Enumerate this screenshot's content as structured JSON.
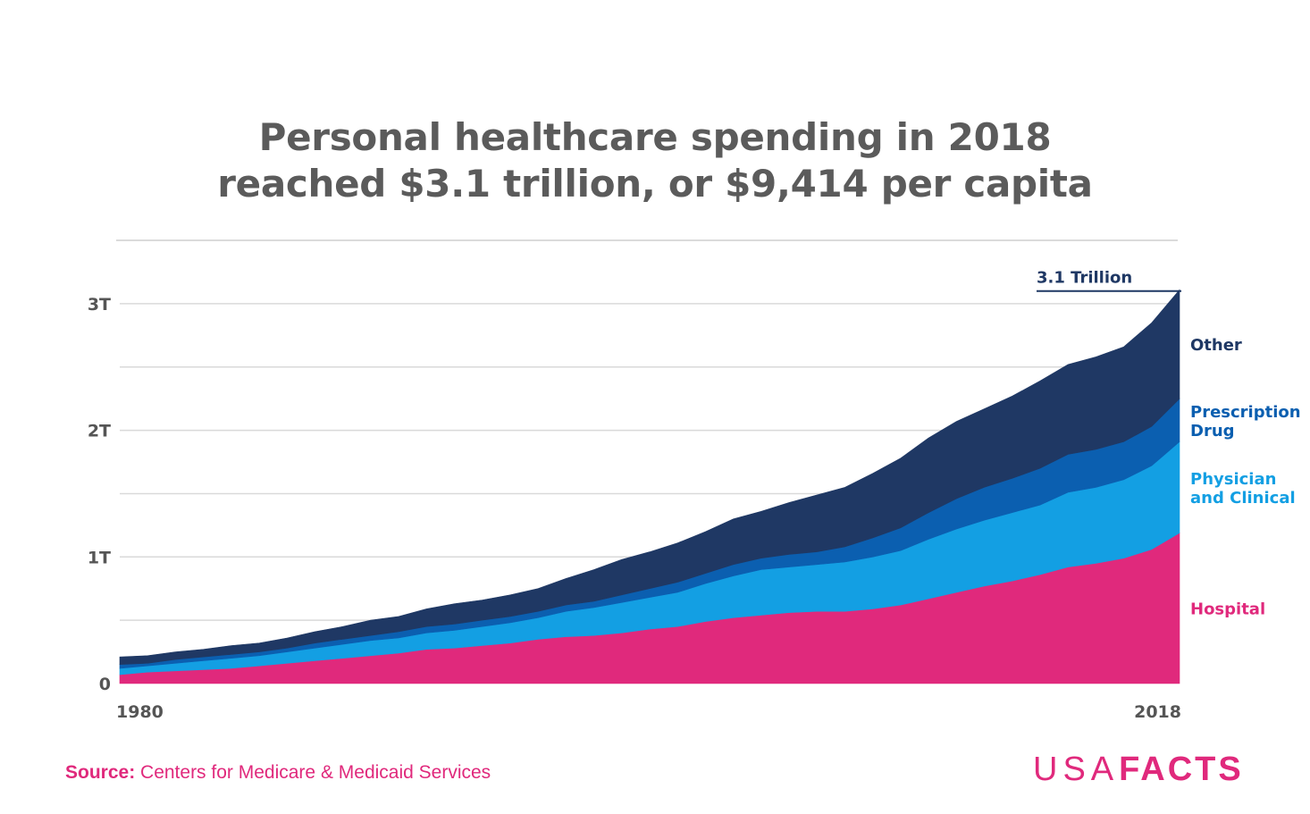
{
  "title_lines": [
    "Personal healthcare spending in 2018",
    "reached $3.1 trillion, or $9,414 per capita"
  ],
  "source": {
    "prefix": "Source:",
    "text": "Centers for Medicare & Medicaid Services"
  },
  "logo": {
    "left": "USA",
    "right": "FACTS"
  },
  "chart_data": {
    "type": "area",
    "stacked": true,
    "title": "Personal healthcare spending in 2018 reached $3.1 trillion, or $9,414 per capita",
    "x": [
      1980,
      1981,
      1982,
      1983,
      1984,
      1985,
      1986,
      1987,
      1988,
      1989,
      1990,
      1991,
      1992,
      1993,
      1994,
      1995,
      1996,
      1997,
      1998,
      1999,
      2000,
      2001,
      2002,
      2003,
      2004,
      2005,
      2006,
      2007,
      2008,
      2009,
      2010,
      2011,
      2012,
      2013,
      2014,
      2015,
      2016,
      2017,
      2018
    ],
    "x_tick_labels": [
      "1980",
      "2018"
    ],
    "y_ticks": [
      0,
      1,
      2,
      3
    ],
    "y_tick_labels": [
      "0",
      "1T",
      "2T",
      "3T"
    ],
    "ylim": [
      0,
      3.5
    ],
    "y_unit": "trillion dollars",
    "grid": true,
    "series": [
      {
        "name": "Hospital",
        "color": "#e0297c",
        "values": [
          0.07,
          0.09,
          0.1,
          0.11,
          0.12,
          0.14,
          0.16,
          0.18,
          0.2,
          0.22,
          0.24,
          0.27,
          0.28,
          0.3,
          0.32,
          0.35,
          0.37,
          0.38,
          0.4,
          0.43,
          0.45,
          0.49,
          0.52,
          0.54,
          0.56,
          0.57,
          0.57,
          0.59,
          0.62,
          0.67,
          0.72,
          0.77,
          0.81,
          0.86,
          0.92,
          0.95,
          0.99,
          1.06,
          1.19
        ]
      },
      {
        "name": "Physician and Clinical",
        "color": "#139fe3",
        "values": [
          0.05,
          0.05,
          0.06,
          0.07,
          0.08,
          0.08,
          0.09,
          0.1,
          0.11,
          0.12,
          0.12,
          0.13,
          0.14,
          0.15,
          0.16,
          0.17,
          0.2,
          0.22,
          0.24,
          0.25,
          0.27,
          0.3,
          0.33,
          0.36,
          0.36,
          0.37,
          0.39,
          0.41,
          0.43,
          0.47,
          0.5,
          0.52,
          0.54,
          0.55,
          0.59,
          0.6,
          0.62,
          0.66,
          0.72
        ]
      },
      {
        "name": "Prescription Drug",
        "color": "#0b5fb0",
        "values": [
          0.03,
          0.02,
          0.03,
          0.03,
          0.03,
          0.03,
          0.03,
          0.04,
          0.04,
          0.04,
          0.05,
          0.05,
          0.05,
          0.05,
          0.05,
          0.05,
          0.05,
          0.05,
          0.06,
          0.07,
          0.08,
          0.08,
          0.09,
          0.09,
          0.1,
          0.1,
          0.12,
          0.15,
          0.18,
          0.21,
          0.24,
          0.26,
          0.27,
          0.29,
          0.3,
          0.3,
          0.3,
          0.31,
          0.34
        ]
      },
      {
        "name": "Other",
        "color": "#1f3864",
        "values": [
          0.06,
          0.06,
          0.06,
          0.06,
          0.07,
          0.07,
          0.08,
          0.09,
          0.1,
          0.12,
          0.12,
          0.14,
          0.16,
          0.16,
          0.17,
          0.18,
          0.21,
          0.25,
          0.28,
          0.29,
          0.31,
          0.33,
          0.36,
          0.37,
          0.41,
          0.45,
          0.47,
          0.51,
          0.55,
          0.59,
          0.61,
          0.62,
          0.65,
          0.69,
          0.71,
          0.73,
          0.75,
          0.82,
          0.86
        ]
      }
    ],
    "annotation": {
      "label": "3.1 Trillion",
      "value": 3.1
    }
  }
}
